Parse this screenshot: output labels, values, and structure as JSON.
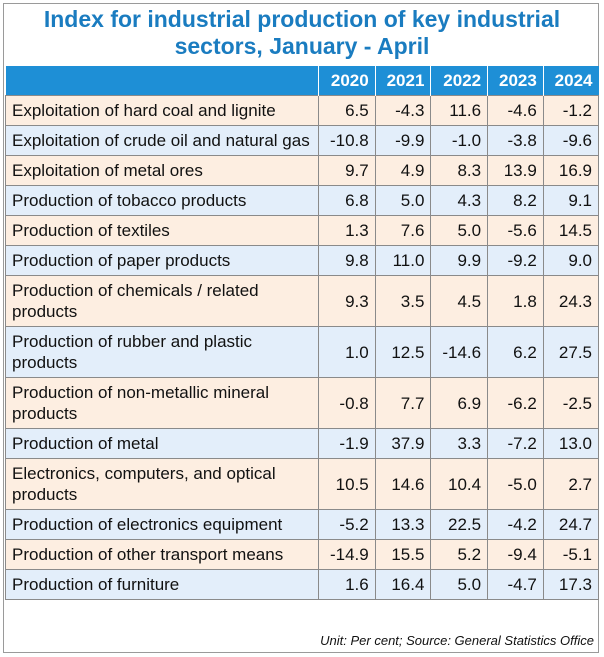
{
  "title": "Index for industrial production of key industrial sectors, January - April",
  "years": [
    "2020",
    "2021",
    "2022",
    "2023",
    "2024"
  ],
  "rows": [
    {
      "label": "Exploitation of hard coal and lignite",
      "values": [
        "6.5",
        "-4.3",
        "11.6",
        "-4.6",
        "-1.2"
      ]
    },
    {
      "label": "Exploitation of crude oil and natural gas",
      "values": [
        "-10.8",
        "-9.9",
        "-1.0",
        "-3.8",
        "-9.6"
      ]
    },
    {
      "label": "Exploitation of metal ores",
      "values": [
        "9.7",
        "4.9",
        "8.3",
        "13.9",
        "16.9"
      ]
    },
    {
      "label": "Production of tobacco products",
      "values": [
        "6.8",
        "5.0",
        "4.3",
        "8.2",
        "9.1"
      ]
    },
    {
      "label": "Production of textiles",
      "values": [
        "1.3",
        "7.6",
        "5.0",
        "-5.6",
        "14.5"
      ]
    },
    {
      "label": "Production of paper products",
      "values": [
        "9.8",
        "11.0",
        "9.9",
        "-9.2",
        "9.0"
      ]
    },
    {
      "label": "Production of chemicals / related products",
      "values": [
        "9.3",
        "3.5",
        "4.5",
        "1.8",
        "24.3"
      ]
    },
    {
      "label": "Production of rubber and plastic products",
      "values": [
        "1.0",
        "12.5",
        "-14.6",
        "6.2",
        "27.5"
      ]
    },
    {
      "label": "Production of non-metallic mineral products",
      "values": [
        "-0.8",
        "7.7",
        "6.9",
        "-6.2",
        "-2.5"
      ]
    },
    {
      "label": "Production of metal",
      "values": [
        "-1.9",
        "37.9",
        "3.3",
        "-7.2",
        "13.0"
      ]
    },
    {
      "label": "Electronics, computers, and optical products",
      "values": [
        "10.5",
        "14.6",
        "10.4",
        "-5.0",
        "2.7"
      ]
    },
    {
      "label": "Production of electronics equipment",
      "values": [
        "-5.2",
        "13.3",
        "22.5",
        "-4.2",
        "24.7"
      ]
    },
    {
      "label": "Production of other transport means",
      "values": [
        "-14.9",
        "15.5",
        "5.2",
        "-9.4",
        "-5.1"
      ]
    },
    {
      "label": "Production of furniture",
      "values": [
        "1.6",
        "16.4",
        "5.0",
        "-4.7",
        "17.3"
      ]
    }
  ],
  "source": "Unit: Per cent; Source: General Statistics Office",
  "colors": {
    "title": "#1a7cc0",
    "header": "#1e8fd6",
    "row_odd": "#fdeee1",
    "row_even": "#e3eefa"
  }
}
